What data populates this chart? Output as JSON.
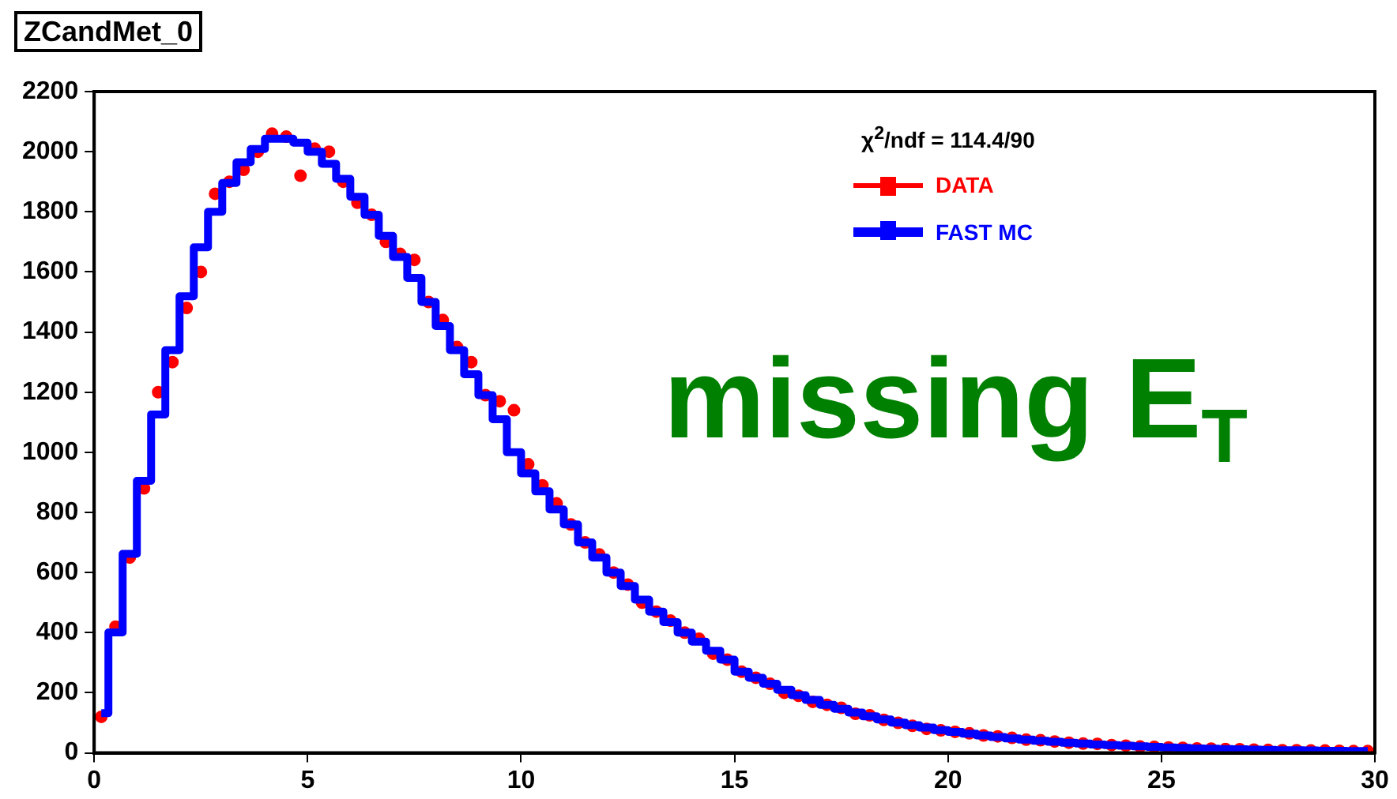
{
  "chart_data": {
    "type": "scatter",
    "title": "ZCandMet_0",
    "annotations": [
      "χ$^{2}$/ndf = 114.4/90",
      "missing E$_{T}$"
    ],
    "x": [
      0.167,
      0.5,
      0.833,
      1.167,
      1.5,
      1.833,
      2.167,
      2.5,
      2.833,
      3.167,
      3.5,
      3.833,
      4.167,
      4.5,
      4.833,
      5.167,
      5.5,
      5.833,
      6.167,
      6.5,
      6.833,
      7.167,
      7.5,
      7.833,
      8.167,
      8.5,
      8.833,
      9.167,
      9.5,
      9.833,
      10.167,
      10.5,
      10.833,
      11.167,
      11.5,
      11.833,
      12.167,
      12.5,
      12.833,
      13.167,
      13.5,
      13.833,
      14.167,
      14.5,
      14.833,
      15.167,
      15.5,
      15.833,
      16.167,
      16.5,
      16.833,
      17.167,
      17.5,
      17.833,
      18.167,
      18.5,
      18.833,
      19.167,
      19.5,
      19.833,
      20.167,
      20.5,
      20.833,
      21.167,
      21.5,
      21.833,
      22.167,
      22.5,
      22.833,
      23.167,
      23.5,
      23.833,
      24.167,
      24.5,
      24.833,
      25.167,
      25.5,
      25.833,
      26.167,
      26.5,
      26.833,
      27.167,
      27.5,
      27.833,
      28.167,
      28.5,
      28.833,
      29.167,
      29.5,
      29.833
    ],
    "series": [
      {
        "name": "DATA",
        "color": "#ff0000",
        "marker": "circle",
        "values": [
          120,
          420,
          650,
          880,
          1200,
          1300,
          1480,
          1600,
          1860,
          1900,
          1940,
          2000,
          2060,
          2050,
          1920,
          2010,
          2000,
          1900,
          1830,
          1790,
          1700,
          1660,
          1640,
          1500,
          1440,
          1350,
          1300,
          1190,
          1170,
          1140,
          960,
          890,
          830,
          760,
          700,
          660,
          600,
          560,
          500,
          470,
          440,
          400,
          380,
          330,
          310,
          270,
          250,
          230,
          200,
          190,
          170,
          160,
          150,
          130,
          125,
          110,
          100,
          90,
          80,
          75,
          70,
          65,
          58,
          55,
          50,
          44,
          42,
          38,
          34,
          31,
          30,
          26,
          24,
          21,
          20,
          18,
          17,
          15,
          14,
          13,
          12,
          11,
          10,
          9,
          9,
          8,
          8,
          7,
          6,
          6
        ]
      },
      {
        "name": "FAST MC",
        "type": "step",
        "color": "#0000ff",
        "values": [
          132,
          401,
          662,
          905,
          1126,
          1340,
          1519,
          1682,
          1800,
          1896,
          1965,
          2009,
          2043,
          2043,
          2030,
          2000,
          1960,
          1910,
          1850,
          1790,
          1720,
          1650,
          1580,
          1500,
          1420,
          1340,
          1260,
          1190,
          1110,
          1000,
          930,
          870,
          810,
          760,
          700,
          650,
          600,
          555,
          510,
          470,
          435,
          400,
          370,
          340,
          310,
          270,
          250,
          230,
          210,
          192,
          176,
          160,
          147,
          134,
          122,
          111,
          101,
          92,
          84,
          76,
          70,
          64,
          58,
          53,
          48,
          44,
          40,
          37,
          34,
          31,
          28,
          26,
          24,
          22,
          20,
          18,
          17,
          15,
          14,
          13,
          12,
          11,
          10,
          9,
          9,
          8,
          7,
          7,
          6,
          6
        ]
      }
    ],
    "xlim": [
      0,
      30
    ],
    "xticks": [
      0,
      5,
      10,
      15,
      20,
      25,
      30
    ],
    "ylim": [
      0,
      2200
    ],
    "yticks": [
      0,
      200,
      400,
      600,
      800,
      1000,
      1200,
      1400,
      1600,
      1800,
      2000,
      2200
    ],
    "grid": false,
    "legend": "top right"
  }
}
